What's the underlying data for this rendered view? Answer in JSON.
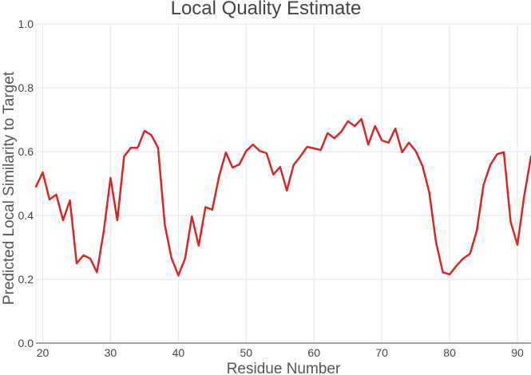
{
  "chart_data": {
    "type": "line",
    "title": "Local Quality Estimate",
    "xlabel": "Residue Number",
    "ylabel": "Predicted Local Similarity to Target",
    "xlim": [
      19,
      92
    ],
    "ylim": [
      0,
      1
    ],
    "xticks": [
      20,
      30,
      40,
      50,
      60,
      70,
      80,
      90
    ],
    "yticks": [
      "0.0",
      "0.2",
      "0.4",
      "0.6",
      "0.8",
      "1.0"
    ],
    "grid": true,
    "series": [
      {
        "color": "#d62728",
        "x": [
          19,
          20,
          21,
          22,
          23,
          24,
          25,
          26,
          27,
          28,
          29,
          30,
          31,
          32,
          33,
          34,
          35,
          36,
          37,
          38,
          39,
          40,
          41,
          42,
          43,
          44,
          45,
          46,
          47,
          48,
          49,
          50,
          51,
          52,
          53,
          54,
          55,
          56,
          57,
          58,
          59,
          60,
          61,
          62,
          63,
          64,
          65,
          66,
          67,
          68,
          69,
          70,
          71,
          72,
          73,
          74,
          75,
          76,
          77,
          78,
          79,
          80,
          81,
          82,
          83,
          84,
          85,
          86,
          87,
          88,
          89,
          90,
          91,
          92
        ],
        "y": [
          0.49,
          0.535,
          0.45,
          0.465,
          0.385,
          0.447,
          0.25,
          0.275,
          0.265,
          0.222,
          0.35,
          0.518,
          0.385,
          0.585,
          0.612,
          0.612,
          0.665,
          0.652,
          0.612,
          0.37,
          0.265,
          0.212,
          0.265,
          0.397,
          0.305,
          0.426,
          0.418,
          0.522,
          0.597,
          0.55,
          0.56,
          0.602,
          0.622,
          0.602,
          0.595,
          0.528,
          0.552,
          0.478,
          0.558,
          0.585,
          0.615,
          0.61,
          0.605,
          0.658,
          0.642,
          0.662,
          0.695,
          0.68,
          0.702,
          0.622,
          0.68,
          0.635,
          0.628,
          0.672,
          0.598,
          0.628,
          0.602,
          0.555,
          0.472,
          0.315,
          0.222,
          0.215,
          0.242,
          0.265,
          0.28,
          0.352,
          0.495,
          0.558,
          0.592,
          0.598,
          0.38,
          0.308,
          0.462,
          0.585
        ]
      }
    ]
  }
}
